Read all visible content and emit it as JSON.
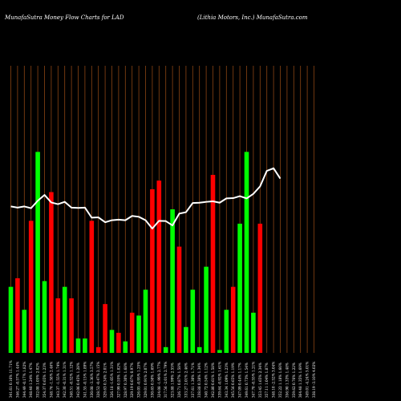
{
  "chart_data": {
    "type": "bar",
    "title_left": "MunafaSutra  Money Flow  Charts for LAD",
    "title_right": "(Lithia  Motors,  Inc.) MunafaSutra.com",
    "colors": {
      "background": "#000000",
      "grid": "#8B4513",
      "up": "#00ff00",
      "down": "#ff0000",
      "line": "#ffffff"
    },
    "grid": true,
    "ylim": [
      0,
      100
    ],
    "categories": [
      "341.61 0.16% 11.71%",
      "346.27 -0.57% 1.44%",
      "344.49 -0.17% 1.82%",
      "348.40 1.24% 1.47%",
      "352.08 1.05% 2.02%",
      "354.37 0.65% 1.23%",
      "348.76 -1.58% 2.46%",
      "343.37 -1.55% 1.74%",
      "342.30 -0.31% 1.31%",
      "340.51 -0.52% 1.12%",
      "342.06 0.45% 1.28%",
      "341.55 -0.15% 1.89%",
      "330.08 -3.36% 3.57%",
      "328.52 -0.47% 2.15%",
      "329.63 0.34% 2.01%",
      "326.18 -1.05% 1.31%",
      "327.99 0.55% 1.82%",
      "328.97 0.30% 1.68%",
      "329.19 0.07% 0.97%",
      "326.05 -0.95% 1.25%",
      "329.01 0.91% 2.07%",
      "330.65 0.50% 1.69%",
      "324.08 -1.99% 2.77%",
      "317.56 -2.01% 2.79%",
      "323.88 1.99% 2.55%",
      "326.71 0.87% 1.58%",
      "333.27 2.01% 2.46%",
      "337.61 1.30% 1.71%",
      "338.88 0.38% 1.34%",
      "340.72 0.54% 1.12%",
      "342.80 0.61% 1.58%",
      "339.64 -0.92% 1.61%",
      "343.34 1.09% 1.23%",
      "345.56 0.65% 1.19%",
      "347.09 0.44% 1.17%",
      "349.61 0.73% 1.54%",
      "347.70 -0.55% 1.21%",
      "353.45 1.65% 2.34%",
      "357.11 1.04% 1.87%",
      "348.10 -2.52% 3.04%",
      "352.22 1.18% 1.66%",
      "356.90 1.33% 1.48%",
      "359.62 0.76% 1.22%",
      "364.48 1.35% 1.69%",
      "349.01 -4.24% 5.01%",
      "338.19 -3.10% 4.02%"
    ],
    "series": [
      {
        "kind": "bars",
        "colors": [
          "green",
          "red",
          "green",
          "red",
          "green",
          "green",
          "red",
          "red",
          "green",
          "red",
          "green",
          "green",
          "red",
          "red",
          "red",
          "green",
          "red",
          "green",
          "red",
          "green",
          "green",
          "red",
          "red",
          "green",
          "green",
          "red",
          "green",
          "green",
          "green",
          "green",
          "red",
          "green",
          "green",
          "red",
          "green",
          "green",
          "green",
          "red",
          "green",
          "red",
          "green",
          "green",
          "red",
          "green",
          "green",
          "red"
        ],
        "values": [
          23,
          26,
          15,
          46,
          70,
          25,
          56,
          19,
          23,
          19,
          5,
          5,
          46,
          2,
          17,
          8,
          7,
          4,
          14,
          13,
          22,
          57,
          60,
          2,
          50,
          37,
          9,
          22,
          2,
          30,
          62,
          1,
          15,
          23,
          45,
          70,
          14,
          45,
          0,
          0,
          0,
          0,
          0,
          0,
          0,
          0
        ]
      },
      {
        "kind": "line",
        "values": [
          51,
          50.6,
          51,
          50.4,
          53,
          55,
          52.4,
          51.8,
          52.6,
          50.6,
          50.5,
          50.6,
          47.1,
          47.2,
          45.5,
          46.2,
          46.4,
          46.2,
          47.7,
          47.4,
          46.2,
          43.3,
          46,
          45.9,
          44.4,
          48.5,
          49,
          52.2,
          52.3,
          52.6,
          52.8,
          52.3,
          53.8,
          53.9,
          54.6,
          53.8,
          55.4,
          58,
          63.4,
          64.3,
          60.7,
          0,
          0,
          0,
          0,
          0
        ]
      }
    ],
    "xlabel": "",
    "ylabel": ""
  }
}
